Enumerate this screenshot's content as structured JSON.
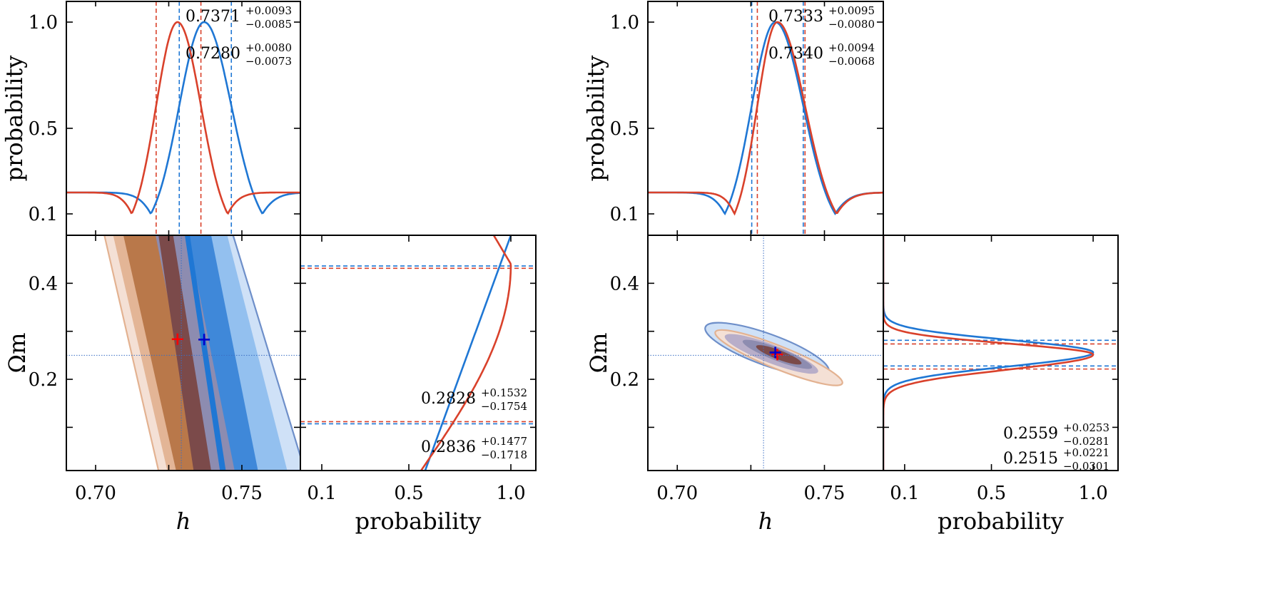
{
  "colors": {
    "blue": "#1f77d4",
    "red": "#d9412b",
    "blue_fill_light": "#cfe1f7",
    "blue_fill_mid": "#93c0ef",
    "blue_fill_dark": "#3f88d9",
    "orange_fill_light": "#f4e0d5",
    "orange_fill_mid": "#e3b596",
    "orange_fill_dark": "#b9784a",
    "purple_overlap": "#8d8cb0",
    "dark_overlap": "#7b4a4a",
    "contour_blue": "#6e8fc9",
    "contour_orange": "#e3b291",
    "marker_red": "#ff0000",
    "marker_blue": "#0000cc"
  },
  "chart_data": [
    {
      "panel": "left-top",
      "type": "line",
      "xlabel": "",
      "ylabel": "probability",
      "xlim": [
        0.69,
        0.77
      ],
      "ylim": [
        0.0,
        1.05
      ],
      "yticks": [
        "0.1",
        "0.5",
        "1.0"
      ],
      "ytick_values": [
        0.1,
        0.5,
        1.0
      ],
      "series": [
        {
          "color_key": "blue",
          "peak": 0.7371,
          "sigma_minus": 0.0085,
          "sigma_plus": 0.0093,
          "ci": [
            0.7286,
            0.7464
          ]
        },
        {
          "color_key": "red",
          "peak": 0.728,
          "sigma_minus": 0.0073,
          "sigma_plus": 0.008,
          "ci": [
            0.7207,
            0.736
          ]
        }
      ],
      "annotations": [
        {
          "main": "0.7371",
          "sup": "+0.0093",
          "sub": "−0.0085"
        },
        {
          "main": "0.7280",
          "sup": "+0.0080",
          "sub": "−0.0073"
        }
      ]
    },
    {
      "panel": "left-joint",
      "type": "contour",
      "xlabel": "h",
      "ylabel": "Ωm",
      "xlim": [
        0.69,
        0.77
      ],
      "ylim": [
        0.01,
        0.5
      ],
      "xticks": [
        "0.70",
        "0.75"
      ],
      "xtick_values": [
        0.7,
        0.75
      ],
      "yticks": [
        "0.2",
        "0.4"
      ],
      "ytick_values": [
        0.2,
        0.4
      ],
      "reference": {
        "h": 0.7293,
        "om": 0.25
      },
      "markers": [
        {
          "color_key": "marker_red",
          "h": 0.728,
          "om": 0.2836
        },
        {
          "color_key": "marker_blue",
          "h": 0.7371,
          "om": 0.2828
        }
      ]
    },
    {
      "panel": "left-right",
      "type": "line",
      "xlabel": "probability",
      "xlim": [
        0.0,
        1.08
      ],
      "ylim": [
        0.01,
        0.5
      ],
      "xticks": [
        "0.1",
        "0.5",
        "1.0"
      ],
      "xtick_values": [
        0.1,
        0.5,
        1.0
      ],
      "series": [
        {
          "color_key": "blue",
          "ci": [
            0.1074,
            0.436
          ]
        },
        {
          "color_key": "red",
          "ci": [
            0.1118,
            0.4313
          ]
        }
      ],
      "annotations": [
        {
          "main": "0.2828",
          "sup": "+0.1532",
          "sub": "−0.1754"
        },
        {
          "main": "0.2836",
          "sup": "+0.1477",
          "sub": "−0.1718"
        }
      ]
    },
    {
      "panel": "right-top",
      "type": "line",
      "xlabel": "",
      "ylabel": "probability",
      "xlim": [
        0.69,
        0.77
      ],
      "ylim": [
        0.0,
        1.05
      ],
      "yticks": [
        "0.1",
        "0.5",
        "1.0"
      ],
      "ytick_values": [
        0.1,
        0.5,
        1.0
      ],
      "series": [
        {
          "color_key": "blue",
          "peak": 0.7333,
          "sigma_minus": 0.008,
          "sigma_plus": 0.0095,
          "ci": [
            0.7253,
            0.7428
          ]
        },
        {
          "color_key": "red",
          "peak": 0.734,
          "sigma_minus": 0.0068,
          "sigma_plus": 0.0094,
          "ci": [
            0.7272,
            0.7434
          ]
        }
      ],
      "annotations": [
        {
          "main": "0.7333",
          "sup": "+0.0095",
          "sub": "−0.0080"
        },
        {
          "main": "0.7340",
          "sup": "+0.0094",
          "sub": "−0.0068"
        }
      ]
    },
    {
      "panel": "right-joint",
      "type": "contour",
      "xlabel": "h",
      "ylabel": "Ωm",
      "xlim": [
        0.69,
        0.77
      ],
      "ylim": [
        0.01,
        0.5
      ],
      "xticks": [
        "0.70",
        "0.75"
      ],
      "xtick_values": [
        0.7,
        0.75
      ],
      "yticks": [
        "0.2",
        "0.4"
      ],
      "ytick_values": [
        0.2,
        0.4
      ],
      "reference": {
        "h": 0.7293,
        "om": 0.25
      },
      "markers": [
        {
          "color_key": "marker_red",
          "h": 0.734,
          "om": 0.2515
        },
        {
          "color_key": "marker_blue",
          "h": 0.7333,
          "om": 0.2559
        }
      ]
    },
    {
      "panel": "right-right",
      "type": "line",
      "xlabel": "probability",
      "xlim": [
        0.0,
        1.08
      ],
      "ylim": [
        0.01,
        0.5
      ],
      "xticks": [
        "0.1",
        "0.5",
        "1.0"
      ],
      "xtick_values": [
        0.1,
        0.5,
        1.0
      ],
      "series": [
        {
          "color_key": "blue",
          "peak": 0.2559,
          "sigma_minus": 0.0281,
          "sigma_plus": 0.0253,
          "ci": [
            0.2278,
            0.2812
          ]
        },
        {
          "color_key": "red",
          "peak": 0.2515,
          "sigma_minus": 0.0301,
          "sigma_plus": 0.0221,
          "ci": [
            0.2214,
            0.2736
          ]
        }
      ],
      "annotations": [
        {
          "main": "0.2559",
          "sup": "+0.0253",
          "sub": "−0.0281"
        },
        {
          "main": "0.2515",
          "sup": "+0.0221",
          "sub": "−0.0301"
        }
      ]
    }
  ]
}
